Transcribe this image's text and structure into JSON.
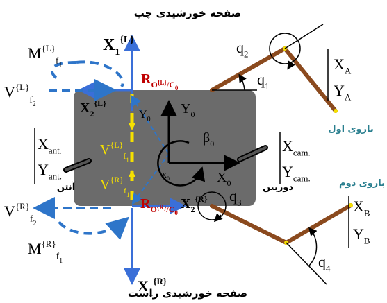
{
  "titles": {
    "top_panel": "صفحه خورشیدی چپ",
    "bottom_panel": "صفحه خورشیدی راست",
    "antenna": "آنتن",
    "camera": "دوربین",
    "arm1": "بازوی اول",
    "arm2": "بازوی دوم"
  },
  "labels": {
    "X1L": {
      "main": "X",
      "sub": "1",
      "sup": "{L}"
    },
    "X2L": {
      "main": "X",
      "sub": "2",
      "sup": "{L}"
    },
    "X1R": {
      "main": "X",
      "sub": "1",
      "sup": "{R}"
    },
    "X2R": {
      "main": "X",
      "sub": "2",
      "sup": "{R}"
    },
    "MfL": {
      "main": "M",
      "sub": "f",
      "subsub": "1",
      "sup": "{L}"
    },
    "VfL2": {
      "main": "V",
      "sub": "f",
      "subsub": "2",
      "sup": "{L}"
    },
    "VfR2": {
      "main": "V",
      "sub": "f",
      "subsub": "2",
      "sup": "{R}"
    },
    "MfR": {
      "main": "M",
      "sub": "f",
      "subsub": "1",
      "sup": "{R}"
    },
    "Vf1L": {
      "main": "V",
      "sub": "f",
      "subsub": "1",
      "sup": "{L}"
    },
    "Vf1R": {
      "main": "V",
      "sub": "f",
      "subsub": "1",
      "sup": "{R}"
    },
    "RL": {
      "main": "R",
      "sub": "O",
      "subsup": "{L}",
      "tail": "/C",
      "tailsub": "0"
    },
    "RR": {
      "main": "R",
      "sub": "O",
      "subsup": "{R}",
      "tail": "/C",
      "tailsub": "0"
    },
    "Y0_small": {
      "main": "Y",
      "sub": "0"
    },
    "Y0": {
      "main": "Y",
      "sub": "0"
    },
    "X0": {
      "main": "X",
      "sub": "0"
    },
    "x0_small": {
      "main": "x",
      "sub": "0"
    },
    "beta0": {
      "main": "β",
      "sub": "0"
    },
    "q1": {
      "main": "q",
      "sub": "1"
    },
    "q2": {
      "main": "q",
      "sub": "2"
    },
    "q3": {
      "main": "q",
      "sub": "3"
    },
    "q4": {
      "main": "q",
      "sub": "4"
    },
    "XA": {
      "main": "X",
      "sub": "A"
    },
    "YA": {
      "main": "Y",
      "sub": "A"
    },
    "XB": {
      "main": "X",
      "sub": "B"
    },
    "YB": {
      "main": "Y",
      "sub": "B"
    },
    "Xant": {
      "main": "X",
      "sub": "ant."
    },
    "Yant": {
      "main": "Y",
      "sub": "ant."
    },
    "Xcam": {
      "main": "X",
      "sub": "cam."
    },
    "Ycam": {
      "main": "Y",
      "sub": "cam."
    }
  },
  "colors": {
    "body": "#6b6b6b",
    "axis_blue": "#3a6fd8",
    "dash_blue": "#2e75c9",
    "arm": "#8b4a1e",
    "yellow": "#f5e000",
    "red_label": "#c00000",
    "teal": "#2a7f8f"
  }
}
